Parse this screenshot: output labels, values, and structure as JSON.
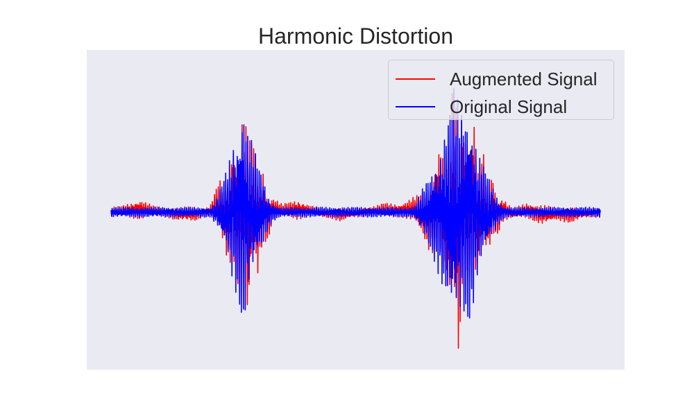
{
  "chart_data": {
    "type": "line",
    "title": "Harmonic Distortion",
    "xlabel": "",
    "ylabel": "",
    "axes_visible": false,
    "grid": false,
    "background": "#EAEAF2",
    "legend_position": "top-right",
    "x_range": [
      0,
      1
    ],
    "y_range": [
      -1.15,
      1.15
    ],
    "envelope_note": "two vibration bursts; original signal centered at 0, augmented signal carries a slow offset",
    "series": [
      {
        "name": "Augmented Signal",
        "color": "#FF0000",
        "x": [
          0.0,
          0.03,
          0.06,
          0.1,
          0.13,
          0.17,
          0.2,
          0.22,
          0.24,
          0.25,
          0.26,
          0.27,
          0.28,
          0.29,
          0.3,
          0.31,
          0.32,
          0.33,
          0.35,
          0.38,
          0.41,
          0.44,
          0.47,
          0.5,
          0.53,
          0.56,
          0.59,
          0.62,
          0.65,
          0.67,
          0.69,
          0.7,
          0.71,
          0.72,
          0.73,
          0.74,
          0.75,
          0.76,
          0.77,
          0.78,
          0.79,
          0.8,
          0.82,
          0.85,
          0.88,
          0.91,
          0.94,
          0.97,
          1.0
        ],
        "y": [
          0.0,
          0.05,
          0.08,
          0.02,
          -0.05,
          -0.06,
          0.02,
          0.2,
          -0.35,
          0.55,
          -0.6,
          0.7,
          -0.8,
          0.5,
          -0.45,
          0.3,
          -0.2,
          0.1,
          0.05,
          0.08,
          0.04,
          -0.03,
          -0.06,
          -0.02,
          0.03,
          0.06,
          0.05,
          0.1,
          -0.25,
          0.45,
          -0.7,
          0.9,
          -1.0,
          0.8,
          -0.6,
          0.7,
          -0.5,
          0.4,
          -0.3,
          0.25,
          -0.15,
          0.1,
          -0.04,
          0.06,
          -0.08,
          -0.05,
          -0.07,
          -0.03,
          0.0
        ]
      },
      {
        "name": "Original Signal",
        "color": "#0000FF",
        "x": [
          0.0,
          0.03,
          0.06,
          0.1,
          0.13,
          0.17,
          0.2,
          0.22,
          0.24,
          0.25,
          0.26,
          0.27,
          0.28,
          0.29,
          0.3,
          0.31,
          0.32,
          0.33,
          0.35,
          0.38,
          0.41,
          0.44,
          0.47,
          0.5,
          0.53,
          0.56,
          0.59,
          0.62,
          0.65,
          0.67,
          0.69,
          0.7,
          0.71,
          0.72,
          0.73,
          0.74,
          0.75,
          0.76,
          0.77,
          0.78,
          0.79,
          0.8,
          0.82,
          0.85,
          0.88,
          0.91,
          0.94,
          0.97,
          1.0
        ],
        "y": [
          0.0,
          0.02,
          0.03,
          0.01,
          0.0,
          0.0,
          0.01,
          0.15,
          -0.4,
          0.6,
          -0.7,
          1.0,
          -0.65,
          0.55,
          -0.4,
          0.3,
          -0.15,
          0.08,
          0.02,
          0.02,
          0.01,
          0.0,
          0.0,
          0.0,
          0.01,
          0.02,
          0.02,
          0.05,
          -0.3,
          0.5,
          -0.8,
          1.0,
          -0.9,
          0.85,
          -0.95,
          0.75,
          -0.5,
          0.4,
          -0.3,
          0.2,
          -0.12,
          0.06,
          -0.02,
          0.03,
          -0.03,
          -0.02,
          -0.02,
          -0.01,
          0.0
        ]
      }
    ]
  }
}
